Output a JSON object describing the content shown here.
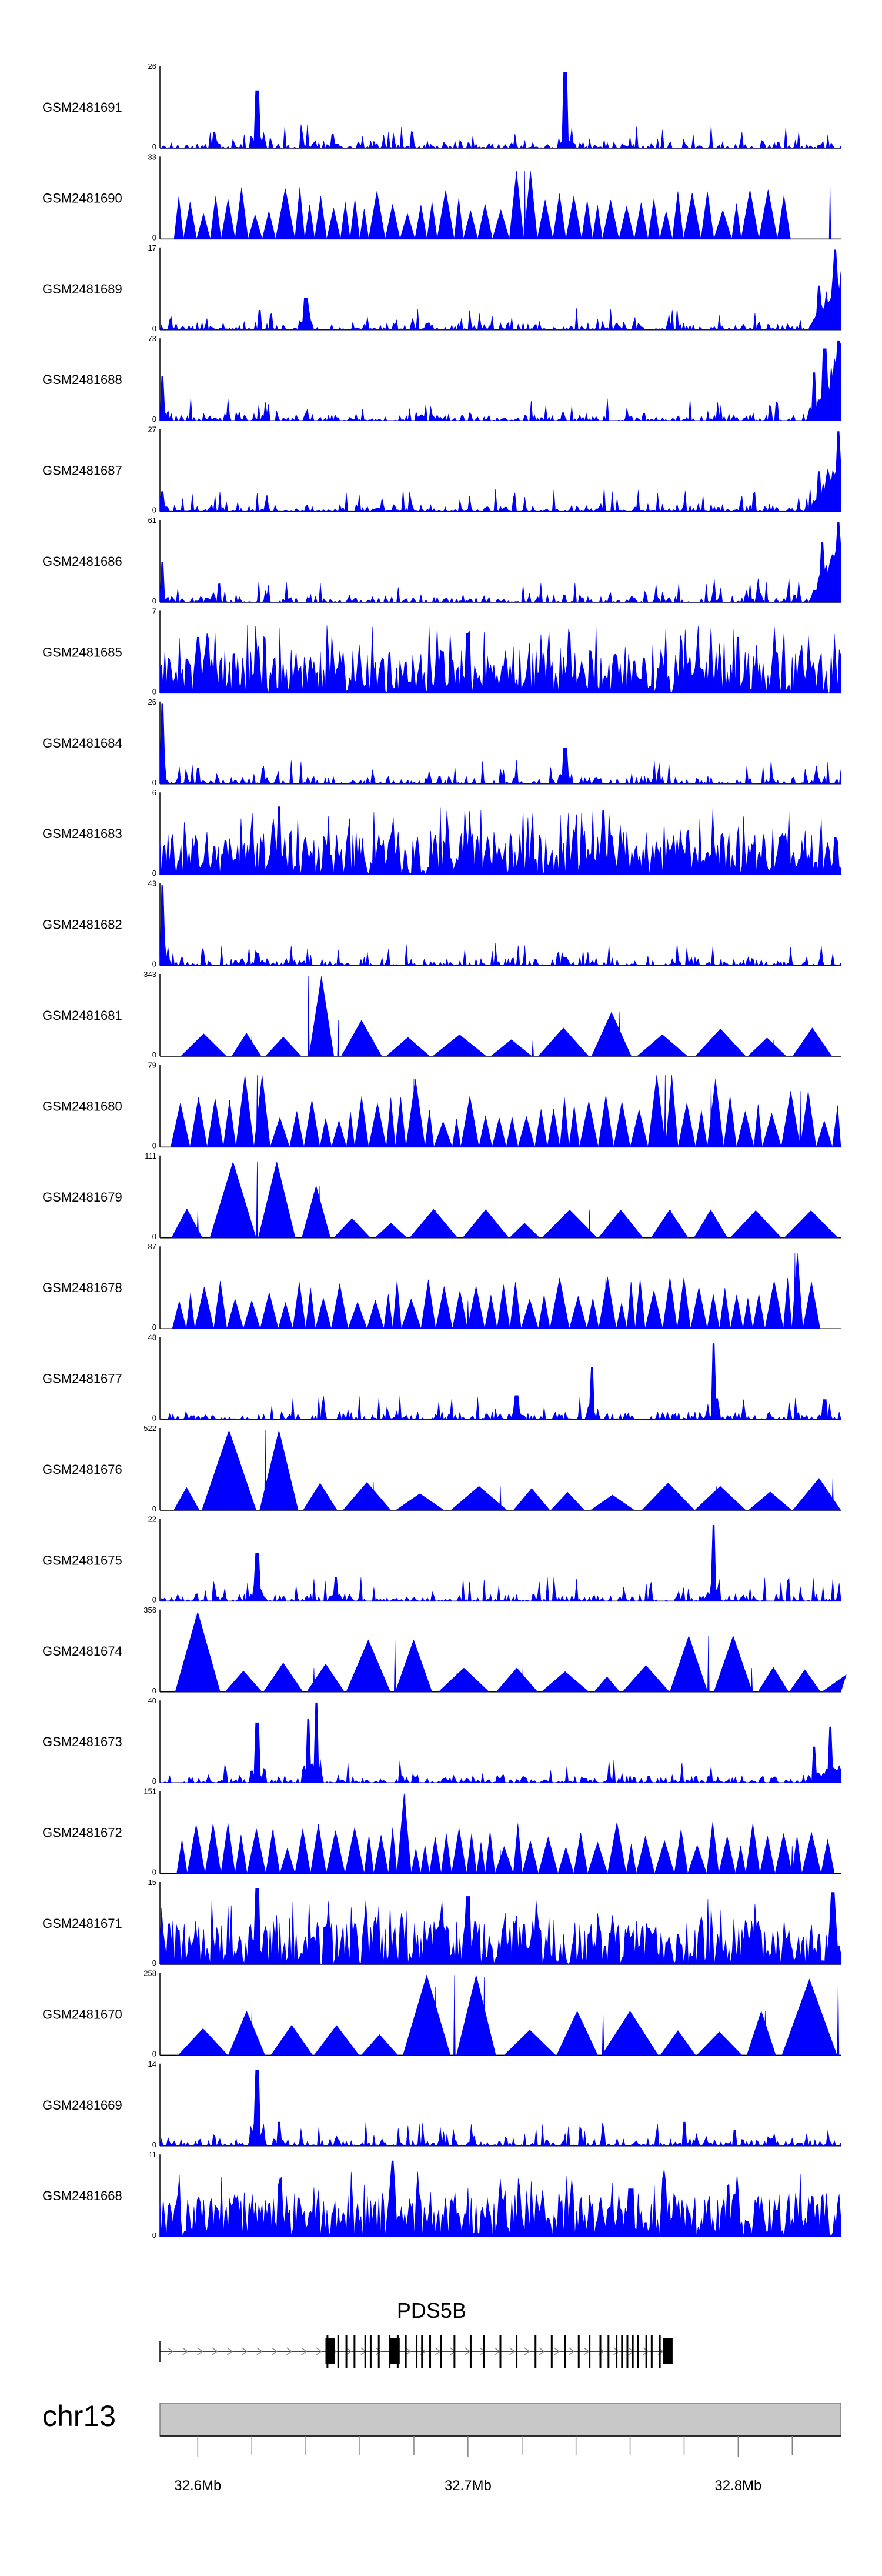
{
  "chart_data": {
    "type": "area",
    "x_range_mb": [
      32.586,
      32.838
    ],
    "y_min_label": "0",
    "colors": {
      "signal": "#0000ff",
      "axis": "#000000",
      "ideogram": "#c8c8c8",
      "gene": "#000000"
    },
    "tracks": [
      {
        "name": "GSM2481691",
        "ymax": 26,
        "style": "spiky",
        "peaks": [
          [
            32.622,
            0.72
          ],
          [
            32.736,
            0.95
          ],
          [
            32.606,
            0.2
          ],
          [
            32.65,
            0.18
          ]
        ],
        "edge_rise": 0
      },
      {
        "name": "GSM2481690",
        "ymax": 33,
        "style": "triangles",
        "peaks": [
          [
            32.721,
            0.85
          ],
          [
            32.666,
            0.6
          ],
          [
            32.834,
            0.7
          ]
        ],
        "edge_rise": 0
      },
      {
        "name": "GSM2481689",
        "ymax": 17,
        "style": "spiky",
        "peaks": [
          [
            32.836,
            1.0
          ],
          [
            32.83,
            0.55
          ],
          [
            32.64,
            0.4
          ]
        ],
        "edge_rise": 0.9
      },
      {
        "name": "GSM2481688",
        "ymax": 73,
        "style": "spiky",
        "peaks": [
          [
            32.587,
            0.55
          ],
          [
            32.837,
            1.0
          ],
          [
            32.832,
            0.9
          ],
          [
            32.828,
            0.6
          ]
        ],
        "edge_rise": 1.0
      },
      {
        "name": "GSM2481687",
        "ymax": 27,
        "style": "spiky",
        "peaks": [
          [
            32.837,
            1.0
          ],
          [
            32.587,
            0.25
          ],
          [
            32.83,
            0.5
          ]
        ],
        "edge_rise": 0.9
      },
      {
        "name": "GSM2481686",
        "ymax": 61,
        "style": "spiky",
        "peaks": [
          [
            32.587,
            0.5
          ],
          [
            32.837,
            1.0
          ],
          [
            32.831,
            0.75
          ]
        ],
        "edge_rise": 1.0
      },
      {
        "name": "GSM2481685",
        "ymax": 7,
        "style": "dense",
        "peaks": [
          [
            32.6,
            0.7
          ],
          [
            32.7,
            0.75
          ],
          [
            32.8,
            0.7
          ]
        ],
        "edge_rise": 0
      },
      {
        "name": "GSM2481684",
        "ymax": 26,
        "style": "spiky",
        "peaks": [
          [
            32.587,
            1.0
          ],
          [
            32.736,
            0.45
          ],
          [
            32.6,
            0.2
          ]
        ],
        "edge_rise": 0
      },
      {
        "name": "GSM2481683",
        "ymax": 6,
        "style": "dense",
        "peaks": [
          [
            32.63,
            0.85
          ],
          [
            32.75,
            0.8
          ]
        ],
        "edge_rise": 0
      },
      {
        "name": "GSM2481682",
        "ymax": 43,
        "style": "spiky",
        "peaks": [
          [
            32.587,
            1.0
          ],
          [
            32.622,
            0.15
          ],
          [
            32.736,
            0.1
          ]
        ],
        "edge_rise": 0
      },
      {
        "name": "GSM2481681",
        "ymax": 343,
        "style": "sparse",
        "peaks": [
          [
            32.641,
            1.0
          ],
          [
            32.652,
            0.45
          ],
          [
            32.62,
            0.25
          ],
          [
            32.665,
            0.2
          ],
          [
            32.756,
            0.55
          ],
          [
            32.724,
            0.2
          ],
          [
            32.813,
            0.2
          ]
        ],
        "edge_rise": 0
      },
      {
        "name": "GSM2481680",
        "ymax": 79,
        "style": "triangles",
        "peaks": [
          [
            32.622,
            0.9
          ],
          [
            32.68,
            0.85
          ],
          [
            32.773,
            0.9
          ],
          [
            32.79,
            0.85
          ],
          [
            32.823,
            0.7
          ]
        ],
        "edge_rise": 0
      },
      {
        "name": "GSM2481679",
        "ymax": 111,
        "style": "sparse",
        "peaks": [
          [
            32.622,
            0.95
          ],
          [
            32.645,
            0.65
          ],
          [
            32.6,
            0.35
          ],
          [
            32.688,
            0.35
          ],
          [
            32.775,
            0.35
          ],
          [
            32.745,
            0.35
          ]
        ],
        "edge_rise": 0
      },
      {
        "name": "GSM2481678",
        "ymax": 87,
        "style": "triangles",
        "peaks": [
          [
            32.751,
            0.65
          ],
          [
            32.821,
            0.95
          ],
          [
            32.7,
            0.35
          ]
        ],
        "edge_rise": 0
      },
      {
        "name": "GSM2481677",
        "ymax": 48,
        "style": "spiky",
        "peaks": [
          [
            32.791,
            0.95
          ],
          [
            32.746,
            0.65
          ],
          [
            32.718,
            0.3
          ],
          [
            32.832,
            0.25
          ]
        ],
        "edge_rise": 0
      },
      {
        "name": "GSM2481676",
        "ymax": 522,
        "style": "sparse",
        "peaks": [
          [
            32.625,
            1.0
          ],
          [
            32.61,
            0.35
          ],
          [
            32.665,
            0.35
          ],
          [
            32.712,
            0.3
          ],
          [
            32.792,
            0.3
          ],
          [
            32.835,
            0.4
          ]
        ],
        "edge_rise": 0
      },
      {
        "name": "GSM2481675",
        "ymax": 22,
        "style": "spiky",
        "peaks": [
          [
            32.791,
            0.95
          ],
          [
            32.622,
            0.6
          ],
          [
            32.651,
            0.3
          ]
        ],
        "edge_rise": 0
      },
      {
        "name": "GSM2481674",
        "ymax": 356,
        "style": "sparse",
        "peaks": [
          [
            32.599,
            1.0
          ],
          [
            32.673,
            0.65
          ],
          [
            32.789,
            0.7
          ],
          [
            32.643,
            0.3
          ],
          [
            32.696,
            0.3
          ],
          [
            32.72,
            0.3
          ],
          [
            32.805,
            0.3
          ]
        ],
        "edge_rise": 0
      },
      {
        "name": "GSM2481673",
        "ymax": 40,
        "style": "spiky",
        "peaks": [
          [
            32.644,
            1.0
          ],
          [
            32.641,
            0.8
          ],
          [
            32.622,
            0.75
          ],
          [
            32.834,
            0.7
          ],
          [
            32.828,
            0.45
          ]
        ],
        "edge_rise": 0.3
      },
      {
        "name": "GSM2481672",
        "ymax": 151,
        "style": "triangles",
        "peaks": [
          [
            32.677,
            1.0
          ],
          [
            32.628,
            0.55
          ],
          [
            32.82,
            0.35
          ],
          [
            32.712,
            0.3
          ]
        ],
        "edge_rise": 0
      },
      {
        "name": "GSM2481671",
        "ymax": 15,
        "style": "dense",
        "peaks": [
          [
            32.622,
            0.95
          ],
          [
            32.7,
            0.85
          ],
          [
            32.835,
            0.9
          ]
        ],
        "edge_rise": 0
      },
      {
        "name": "GSM2481670",
        "ymax": 258,
        "style": "sparse",
        "peaks": [
          [
            32.695,
            1.0
          ],
          [
            32.706,
            0.98
          ],
          [
            32.837,
            0.95
          ],
          [
            32.688,
            0.85
          ],
          [
            32.62,
            0.55
          ],
          [
            32.75,
            0.55
          ],
          [
            32.81,
            0.55
          ]
        ],
        "edge_rise": 0
      },
      {
        "name": "GSM2481669",
        "ymax": 14,
        "style": "spiky",
        "peaks": [
          [
            32.622,
            0.95
          ],
          [
            32.63,
            0.3
          ],
          [
            32.78,
            0.3
          ]
        ],
        "edge_rise": 0
      },
      {
        "name": "GSM2481668",
        "ymax": 11,
        "style": "dense",
        "peaks": [
          [
            32.672,
            0.95
          ],
          [
            32.63,
            0.65
          ],
          [
            32.76,
            0.6
          ]
        ],
        "edge_rise": 0
      }
    ],
    "gene": {
      "name": "PDS5B",
      "start_mb": 32.586,
      "end_mb": 32.774,
      "exons_mb": [
        32.648,
        32.652,
        32.655,
        32.658,
        32.662,
        32.664,
        32.667,
        32.671,
        32.674,
        32.677,
        32.681,
        32.683,
        32.686,
        32.69,
        32.695,
        32.701,
        32.706,
        32.712,
        32.718,
        32.725,
        32.731,
        32.736,
        32.741,
        32.745,
        32.749,
        32.752,
        32.755,
        32.757,
        32.759,
        32.761,
        32.763,
        32.766,
        32.768,
        32.771
      ],
      "large_exons_mb": [
        32.649,
        32.673,
        32.774
      ]
    },
    "ideogram": {
      "chromosome": "chr13",
      "axis_ticks_mb": [
        32.6,
        32.62,
        32.64,
        32.66,
        32.68,
        32.7,
        32.72,
        32.74,
        32.76,
        32.78,
        32.8,
        32.82
      ],
      "axis_labels": [
        {
          "mb": 32.6,
          "text": "32.6Mb"
        },
        {
          "mb": 32.7,
          "text": "32.7Mb"
        },
        {
          "mb": 32.8,
          "text": "32.8Mb"
        }
      ]
    }
  }
}
